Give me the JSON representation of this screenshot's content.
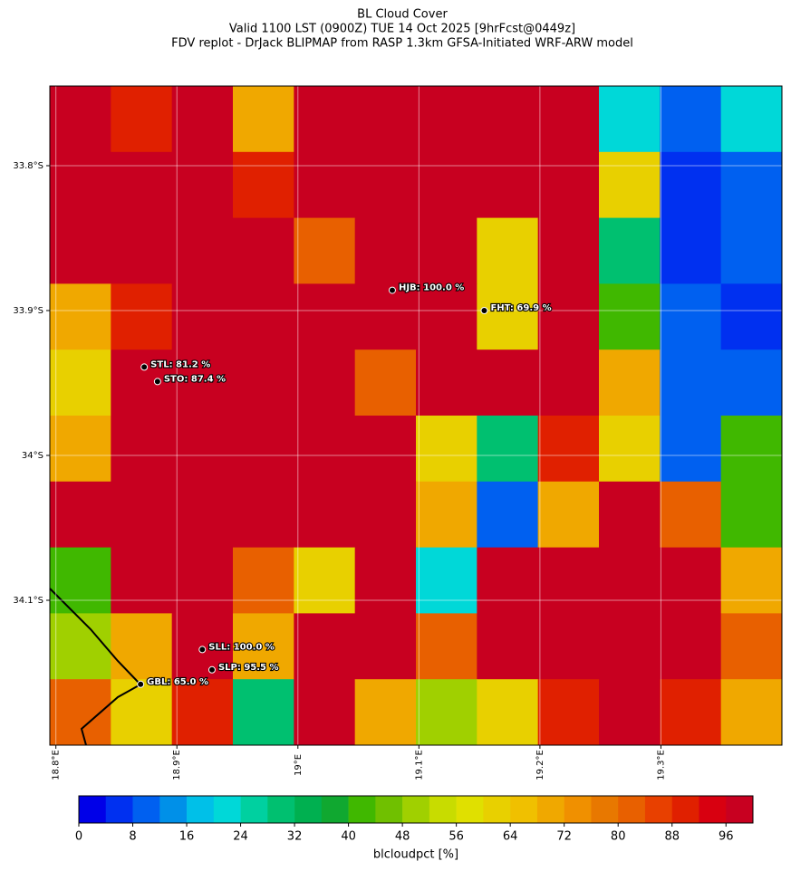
{
  "chart_data": {
    "type": "heatmap",
    "title": [
      "BL Cloud Cover",
      "Valid 1100 LST (0900Z) TUE 14 Oct 2025 [9hrFcst@0449z]",
      "FDV replot - DrJack BLIPMAP from RASP 1.3km GFSA-Initiated WRF-ARW model"
    ],
    "values": [
      [
        96,
        90,
        96,
        70,
        96,
        96,
        96,
        96,
        96,
        20,
        10,
        20
      ],
      [
        96,
        96,
        96,
        90,
        96,
        96,
        96,
        96,
        96,
        60,
        5,
        10
      ],
      [
        96,
        96,
        96,
        96,
        80,
        96,
        96,
        60,
        96,
        30,
        5,
        10
      ],
      [
        70,
        90,
        96,
        96,
        96,
        96,
        96,
        60,
        96,
        40,
        10,
        5
      ],
      [
        60,
        96,
        96,
        96,
        96,
        80,
        96,
        96,
        96,
        70,
        10,
        10
      ],
      [
        70,
        96,
        96,
        96,
        96,
        96,
        60,
        30,
        90,
        60,
        10,
        40
      ],
      [
        96,
        96,
        96,
        96,
        96,
        96,
        70,
        10,
        70,
        96,
        80,
        40
      ],
      [
        40,
        96,
        96,
        80,
        60,
        96,
        20,
        96,
        96,
        96,
        96,
        70
      ],
      [
        50,
        70,
        96,
        70,
        96,
        96,
        80,
        96,
        96,
        96,
        96,
        80
      ],
      [
        80,
        60,
        90,
        30,
        96,
        70,
        50,
        60,
        90,
        96,
        90,
        70
      ]
    ],
    "xlim": [
      18.795,
      19.4
    ],
    "ylim": [
      33.745,
      34.2
    ],
    "xticks": [
      {
        "value": 18.8,
        "label": "18.8°E"
      },
      {
        "value": 18.9,
        "label": "18.9°E"
      },
      {
        "value": 19.0,
        "label": "19°E"
      },
      {
        "value": 19.1,
        "label": "19.1°E"
      },
      {
        "value": 19.2,
        "label": "19.2°E"
      },
      {
        "value": 19.3,
        "label": "19.3°E"
      }
    ],
    "yticks": [
      {
        "value": 33.8,
        "label": "33.8°S"
      },
      {
        "value": 33.9,
        "label": "33.9°S"
      },
      {
        "value": 34.0,
        "label": "34°S"
      },
      {
        "value": 34.1,
        "label": "34.1°S"
      }
    ],
    "grid": true,
    "stations": [
      {
        "lon": 19.078,
        "lat": 33.886,
        "value": 100,
        "label": "HJB: 100.0 %"
      },
      {
        "lon": 19.154,
        "lat": 33.9,
        "value": 69.9,
        "label": "FHT: 69.9 %"
      },
      {
        "lon": 18.873,
        "lat": 33.939,
        "value": 81.2,
        "label": "STL: 81.2 %"
      },
      {
        "lon": 18.884,
        "lat": 33.949,
        "value": 87.4,
        "label": "STO: 87.4 %"
      },
      {
        "lon": 18.921,
        "lat": 34.134,
        "value": 100,
        "label": "SLL: 100.0 %"
      },
      {
        "lon": 18.929,
        "lat": 34.148,
        "value": 95.5,
        "label": "SLP: 95.5 %"
      },
      {
        "lon": 18.87,
        "lat": 34.158,
        "value": 65,
        "label": "GBL: 65.0 %"
      }
    ],
    "colorbar": {
      "label": "blcloudpct [%]",
      "lim": [
        0,
        100
      ],
      "step": 4,
      "ticks": [
        0,
        8,
        16,
        24,
        32,
        40,
        48,
        56,
        64,
        72,
        80,
        88,
        96
      ],
      "colors": [
        "#0000e8",
        "#0030f0",
        "#0060f0",
        "#0090e8",
        "#00c0e8",
        "#00d8d8",
        "#00d0a0",
        "#00c070",
        "#00b050",
        "#10a830",
        "#40b800",
        "#70c000",
        "#a0d000",
        "#c8dc00",
        "#e0e000",
        "#e8d000",
        "#f0c000",
        "#f0a800",
        "#f09000",
        "#e87800",
        "#e86000",
        "#e84000",
        "#e02000",
        "#d80010",
        "#c80020"
      ]
    }
  }
}
